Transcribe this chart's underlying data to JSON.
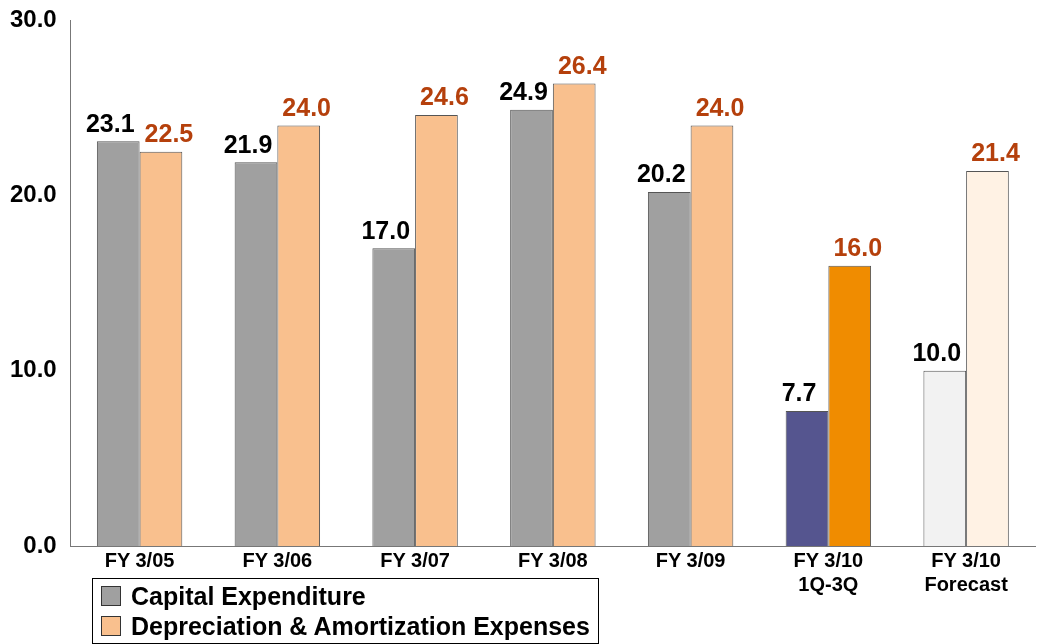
{
  "chart_data": {
    "type": "bar",
    "categories": [
      "FY 3/05",
      "FY 3/06",
      "FY 3/07",
      "FY 3/08",
      "FY 3/09",
      "FY 3/10\n1Q-3Q",
      "FY 3/10\nForecast"
    ],
    "series": [
      {
        "name": "Capital Expenditure",
        "color": "#a0a0a0",
        "colors": [
          "#a0a0a0",
          "#a0a0a0",
          "#a0a0a0",
          "#a0a0a0",
          "#a0a0a0",
          "#55558f",
          "#f2f2f2"
        ],
        "values": [
          23.1,
          21.9,
          17.0,
          24.9,
          20.2,
          7.7,
          10.0
        ],
        "value_labels": [
          "23.1",
          "21.9",
          "17.0",
          "24.9",
          "20.2",
          "7.7",
          "10.0"
        ]
      },
      {
        "name": "Depreciation & Amortization Expenses",
        "color": "#f9c08e",
        "colors": [
          "#f9c08e",
          "#f9c08e",
          "#f9c08e",
          "#f9c08e",
          "#f9c08e",
          "#f08c00",
          "#fff2e4"
        ],
        "values": [
          22.5,
          24.0,
          24.6,
          26.4,
          24.0,
          16.0,
          21.4
        ],
        "value_labels": [
          "22.5",
          "24.0",
          "24.6",
          "26.4",
          "24.0",
          "16.0",
          "21.4"
        ]
      }
    ],
    "ylim": [
      0,
      30
    ],
    "yticks": [
      {
        "value": 0,
        "label": "0.0"
      },
      {
        "value": 10,
        "label": "10.0"
      },
      {
        "value": 20,
        "label": "20.0"
      },
      {
        "value": 30,
        "label": "30.0"
      }
    ],
    "grid": false,
    "legend": "bottom left"
  }
}
